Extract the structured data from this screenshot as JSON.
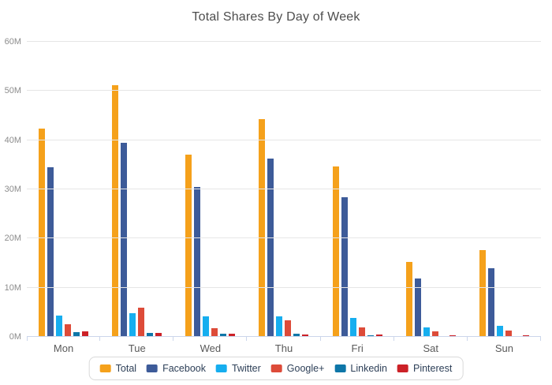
{
  "title": "Total Shares By Day of Week",
  "chart_data": {
    "type": "bar",
    "title": "Total Shares By Day of Week",
    "xlabel": "",
    "ylabel": "",
    "ylim": [
      0,
      60
    ],
    "y_unit": "M",
    "ytick_labels": [
      "0M",
      "10M",
      "20M",
      "30M",
      "40M",
      "50M",
      "60M"
    ],
    "grid": true,
    "legend_position": "bottom",
    "categories": [
      "Mon",
      "Tue",
      "Wed",
      "Thu",
      "Fri",
      "Sat",
      "Sun"
    ],
    "series": [
      {
        "name": "Total",
        "color": "#F5A11B",
        "values": [
          42.3,
          51.1,
          37.0,
          44.3,
          34.6,
          15.3,
          17.7
        ]
      },
      {
        "name": "Facebook",
        "color": "#3D5B99",
        "values": [
          34.5,
          39.5,
          30.5,
          36.2,
          28.4,
          11.9,
          14.0
        ]
      },
      {
        "name": "Twitter",
        "color": "#16AEEF",
        "values": [
          4.4,
          4.8,
          4.1,
          4.2,
          3.8,
          2.0,
          2.2
        ]
      },
      {
        "name": "Google+",
        "color": "#DD4B39",
        "values": [
          2.5,
          5.9,
          1.8,
          3.3,
          1.9,
          1.2,
          1.3
        ]
      },
      {
        "name": "Linkedin",
        "color": "#0E76A8",
        "values": [
          0.9,
          0.8,
          0.7,
          0.7,
          0.4,
          0.1,
          0.1
        ]
      },
      {
        "name": "Pinterest",
        "color": "#CC2127",
        "values": [
          1.2,
          0.8,
          0.6,
          0.5,
          0.5,
          0.3,
          0.3
        ]
      }
    ]
  }
}
